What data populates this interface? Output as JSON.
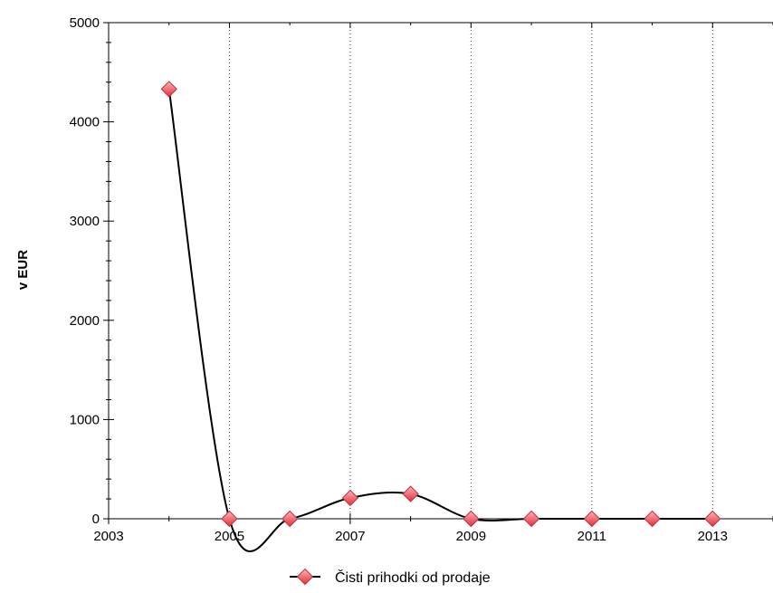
{
  "chart_data": {
    "type": "line",
    "title": "",
    "xlabel": "",
    "ylabel": "v EUR",
    "xlim": [
      2003,
      2014
    ],
    "ylim": [
      0,
      5000
    ],
    "x_ticks": [
      2003,
      2005,
      2007,
      2009,
      2011,
      2013
    ],
    "y_ticks": [
      0,
      1000,
      2000,
      3000,
      4000,
      5000
    ],
    "grid": "vertical dotted lines at 2005, 2007, 2009, 2011, 2013",
    "legend_position": "bottom-center",
    "series": [
      {
        "name": "Čisti prihodki od prodaje",
        "color": "#000000",
        "marker_color": "#f0646e",
        "marker": "diamond",
        "x": [
          2004,
          2005,
          2006,
          2007,
          2008,
          2009,
          2010,
          2011,
          2012,
          2013
        ],
        "y": [
          4330,
          0,
          0,
          210,
          250,
          0,
          0,
          0,
          0,
          0
        ]
      }
    ]
  }
}
